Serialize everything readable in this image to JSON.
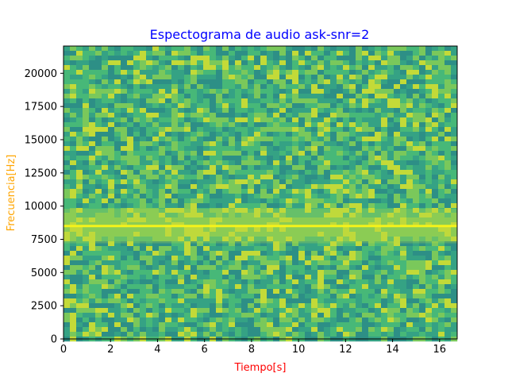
{
  "chart_data": {
    "type": "heatmap",
    "title": "Espectograma de audio ask-snr=2",
    "xlabel": "Tiempo[s]",
    "ylabel": "Frecuencia[Hz]",
    "xlim": [
      0,
      16.75
    ],
    "ylim": [
      0,
      22050
    ],
    "x_ticks": [
      0,
      2,
      4,
      6,
      8,
      10,
      12,
      14,
      16
    ],
    "y_ticks": [
      0,
      2500,
      5000,
      7500,
      10000,
      12500,
      15000,
      17500,
      20000
    ],
    "x_tick_labels": [
      "0",
      "2",
      "4",
      "6",
      "8",
      "10",
      "12",
      "14",
      "16"
    ],
    "y_tick_labels": [
      "0",
      "2500",
      "5000",
      "7500",
      "10000",
      "12500",
      "15000",
      "17500",
      "20000"
    ],
    "carrier_frequency_hz": 8500,
    "sideband_range_hz": [
      7200,
      9800
    ],
    "colormap": "viridis",
    "grid": false,
    "colors": {
      "title": "#0000ff",
      "xlabel": "#ff0000",
      "ylabel": "#ffa500"
    }
  }
}
